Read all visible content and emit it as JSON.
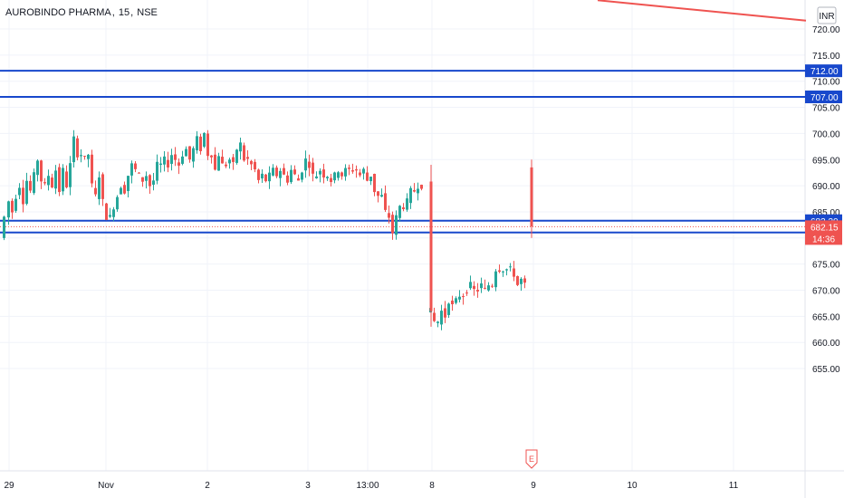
{
  "header": {
    "symbol": "AUROBINDO PHARMA",
    "interval": "15",
    "exchange": "NSE",
    "currency": "INR"
  },
  "chart_data": {
    "type": "candlestick",
    "title": "AUROBINDO PHARMA, 15, NSE",
    "currency": "INR",
    "ylim": [
      652,
      724
    ],
    "y_ticks": [
      655,
      660,
      665,
      670,
      675,
      680,
      685,
      690,
      695,
      700,
      705,
      710,
      715,
      720
    ],
    "y_tick_labels": [
      "655.00",
      "660.00",
      "665.00",
      "670.00",
      "675.00",
      "680.00",
      "685.00",
      "690.00",
      "695.00",
      "700.00",
      "705.00",
      "710.00",
      "715.00",
      "720.00"
    ],
    "x_labels": [
      "29",
      "Nov",
      "2",
      "3",
      "13:00",
      "8",
      "9",
      "10",
      "11"
    ],
    "grid": true,
    "horizontal_levels": [
      {
        "value": 712.0,
        "label": "712.00",
        "color": "#1848cc"
      },
      {
        "value": 707.0,
        "label": "707.00",
        "color": "#1848cc"
      },
      {
        "value": 683.3,
        "label": "683.30",
        "color": "#1848cc"
      },
      {
        "value": 681.05,
        "label": "681.05",
        "color": "#1848cc"
      }
    ],
    "last_price": {
      "value": 682.15,
      "label": "682.15",
      "countdown": "14:36",
      "color": "#ef5350"
    },
    "trendline": {
      "from": [
        660,
        725.5
      ],
      "to": [
        890,
        721.6
      ],
      "color": "#ef5350"
    },
    "event_marker": {
      "label": "E",
      "bar": 587
    },
    "colors": {
      "up": "#26a69a",
      "down": "#ef5350",
      "level": "#1848cc",
      "grid": "#f0f3fa"
    },
    "waypoints": [
      [
        3,
        680
      ],
      [
        8,
        684
      ],
      [
        12,
        687
      ],
      [
        16,
        685
      ],
      [
        20,
        688
      ],
      [
        24,
        690
      ],
      [
        28,
        687
      ],
      [
        32,
        691
      ],
      [
        36,
        689
      ],
      [
        40,
        692
      ],
      [
        44,
        695
      ],
      [
        48,
        691
      ],
      [
        52,
        690
      ],
      [
        56,
        692
      ],
      [
        60,
        690
      ],
      [
        64,
        693
      ],
      [
        68,
        689
      ],
      [
        72,
        693
      ],
      [
        76,
        690
      ],
      [
        80,
        694
      ],
      [
        84,
        699
      ],
      [
        88,
        696
      ],
      [
        92,
        696
      ],
      [
        96,
        695
      ],
      [
        100,
        696
      ],
      [
        104,
        690
      ],
      [
        108,
        688
      ],
      [
        112,
        692
      ],
      [
        116,
        687
      ],
      [
        120,
        684
      ],
      [
        124,
        684
      ],
      [
        128,
        686
      ],
      [
        132,
        688
      ],
      [
        136,
        690
      ],
      [
        140,
        689
      ],
      [
        144,
        692
      ],
      [
        148,
        694
      ],
      [
        152,
        693
      ],
      [
        156,
        692
      ],
      [
        160,
        691
      ],
      [
        164,
        692
      ],
      [
        168,
        690
      ],
      [
        172,
        691
      ],
      [
        176,
        694
      ],
      [
        180,
        694
      ],
      [
        184,
        695
      ],
      [
        188,
        694
      ],
      [
        192,
        696
      ],
      [
        196,
        695
      ],
      [
        200,
        694
      ],
      [
        204,
        696
      ],
      [
        208,
        697
      ],
      [
        212,
        695
      ],
      [
        216,
        697
      ],
      [
        220,
        699
      ],
      [
        224,
        697
      ],
      [
        228,
        700
      ],
      [
        232,
        696
      ],
      [
        236,
        696
      ],
      [
        240,
        693
      ],
      [
        244,
        696
      ],
      [
        248,
        694
      ],
      [
        252,
        694
      ],
      [
        256,
        695
      ],
      [
        260,
        694
      ],
      [
        264,
        697
      ],
      [
        268,
        698
      ],
      [
        272,
        695
      ],
      [
        276,
        695
      ],
      [
        280,
        694
      ],
      [
        284,
        693
      ],
      [
        288,
        691
      ],
      [
        292,
        692
      ],
      [
        296,
        691
      ],
      [
        300,
        692
      ],
      [
        304,
        693
      ],
      [
        308,
        692
      ],
      [
        312,
        693
      ],
      [
        316,
        692
      ],
      [
        320,
        691
      ],
      [
        324,
        693
      ],
      [
        328,
        692
      ],
      [
        332,
        691
      ],
      [
        336,
        693
      ],
      [
        340,
        695
      ],
      [
        344,
        694
      ],
      [
        348,
        692
      ],
      [
        352,
        692
      ],
      [
        356,
        693
      ],
      [
        360,
        692
      ],
      [
        364,
        692
      ],
      [
        368,
        691
      ],
      [
        372,
        692
      ],
      [
        376,
        693
      ],
      [
        380,
        692
      ],
      [
        384,
        693
      ],
      [
        388,
        693
      ],
      [
        392,
        693
      ],
      [
        396,
        693
      ],
      [
        400,
        692
      ],
      [
        404,
        693
      ],
      [
        408,
        691
      ],
      [
        412,
        692
      ],
      [
        416,
        689
      ],
      [
        420,
        688
      ],
      [
        424,
        688
      ],
      [
        428,
        685
      ],
      [
        432,
        684
      ],
      [
        436,
        681
      ],
      [
        440,
        684
      ],
      [
        444,
        686
      ],
      [
        448,
        686
      ],
      [
        452,
        687
      ],
      [
        456,
        689
      ],
      [
        460,
        689
      ],
      [
        464,
        690
      ],
      [
        468,
        690
      ],
      [
        474,
        666
      ],
      [
        478,
        666
      ],
      [
        482,
        664
      ],
      [
        486,
        664
      ],
      [
        490,
        666
      ],
      [
        494,
        665
      ],
      [
        498,
        668
      ],
      [
        502,
        667
      ],
      [
        506,
        668
      ],
      [
        510,
        669
      ],
      [
        514,
        669
      ],
      [
        518,
        670
      ],
      [
        522,
        671
      ],
      [
        526,
        670
      ],
      [
        530,
        670
      ],
      [
        534,
        671
      ],
      [
        538,
        670
      ],
      [
        542,
        671
      ],
      [
        546,
        671
      ],
      [
        550,
        674
      ],
      [
        554,
        674
      ],
      [
        558,
        674
      ],
      [
        562,
        674
      ],
      [
        566,
        674
      ],
      [
        570,
        673
      ],
      [
        574,
        671
      ],
      [
        578,
        672
      ],
      [
        582,
        671
      ]
    ],
    "big_candles": [
      {
        "x": 476,
        "open": 690.8,
        "close": 666.0,
        "high": 694.0,
        "low": 663.0
      },
      {
        "x": 587,
        "open": 693.5,
        "close": 682.2,
        "high": 695.0,
        "low": 680.0
      }
    ]
  }
}
